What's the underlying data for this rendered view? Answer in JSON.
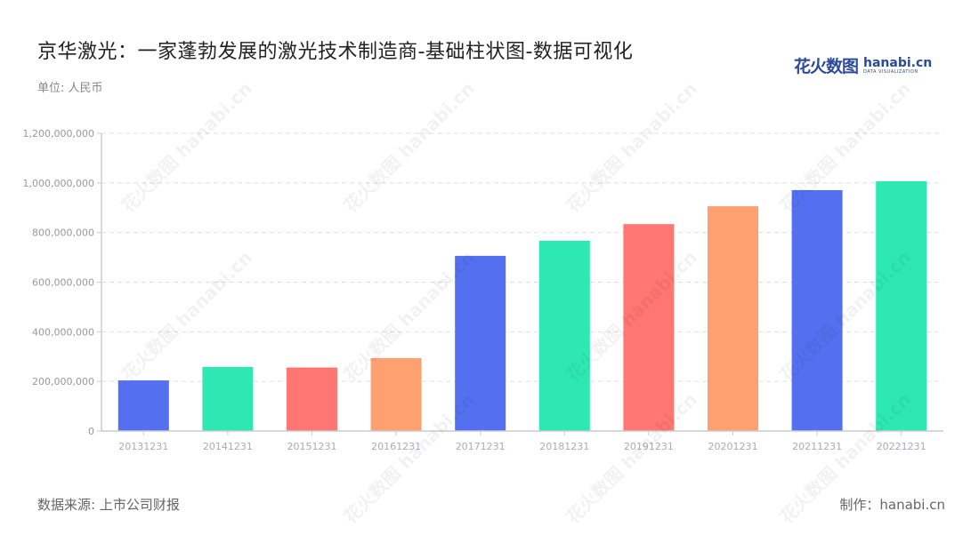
{
  "header": {
    "title": "京华激光：一家蓬勃发展的激光技术制造商-基础柱状图-数据可视化",
    "unit": "单位: 人民币"
  },
  "logo": {
    "cn": "花火数图",
    "en": "hanabi.cn",
    "sub": "DATA VISUALIZATION"
  },
  "footer": {
    "source": "数据来源: 上市公司财报",
    "credit": "制作：hanabi.cn"
  },
  "watermark": "花火数图 hanabi.cn",
  "colors": [
    "#5470f0",
    "#2ee8b4",
    "#ff7672",
    "#ffa070"
  ],
  "chart_data": {
    "type": "bar",
    "title": "京华激光：一家蓬勃发展的激光技术制造商-基础柱状图-数据可视化",
    "xlabel": "",
    "ylabel": "单位: 人民币",
    "categories": [
      "20131231",
      "20141231",
      "20151231",
      "20161231",
      "20171231",
      "20181231",
      "20191231",
      "20201231",
      "20211231",
      "20221231"
    ],
    "values": [
      204000000,
      258000000,
      256000000,
      294000000,
      706000000,
      767000000,
      834000000,
      906000000,
      971000000,
      1007000000
    ],
    "yticks": [
      0,
      200000000,
      400000000,
      600000000,
      800000000,
      1000000000,
      1200000000
    ],
    "ytick_labels": [
      "0",
      "200,000,000",
      "400,000,000",
      "600,000,000",
      "800,000,000",
      "1,000,000,000",
      "1,200,000,000"
    ],
    "ylim": [
      0,
      1200000000
    ],
    "grid": "horizontal dashed",
    "legend": "none",
    "bar_colors_cycle": [
      "#5470f0",
      "#2ee8b4",
      "#ff7672",
      "#ffa070"
    ]
  }
}
